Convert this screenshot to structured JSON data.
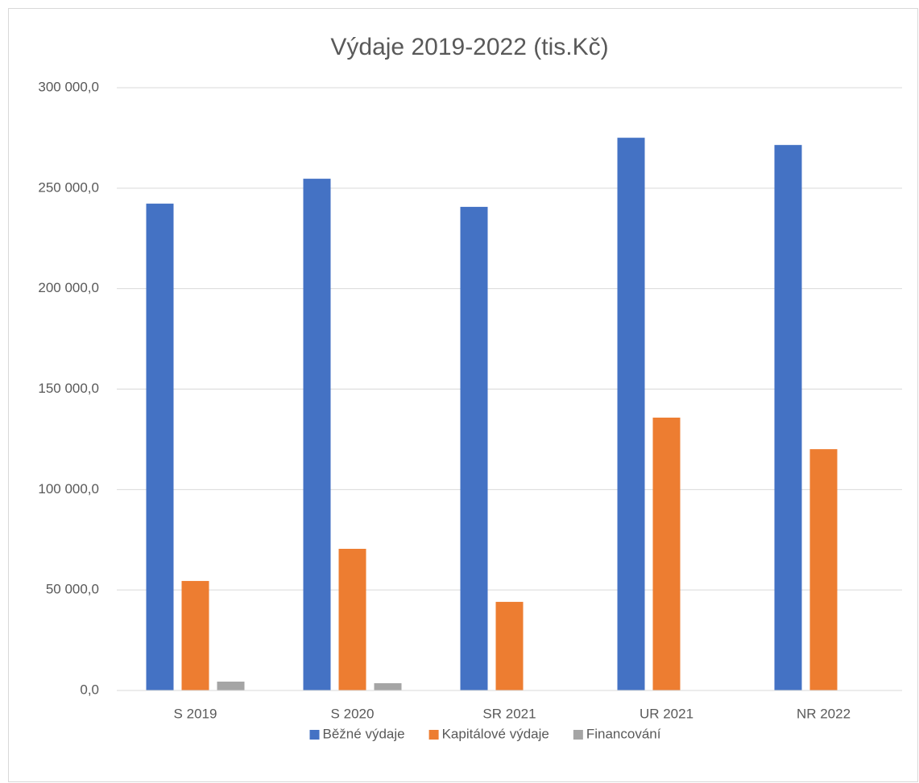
{
  "chart_data": {
    "type": "bar",
    "title": "Výdaje 2019-2022 (tis.Kč)",
    "categories": [
      "S 2019",
      "S 2020",
      "SR 2021",
      "UR 2021",
      "NR 2022"
    ],
    "series": [
      {
        "name": "Běžné výdaje",
        "color": "#4472c4",
        "values": [
          242300,
          254700,
          240700,
          275100,
          271500
        ]
      },
      {
        "name": "Kapitálové výdaje",
        "color": "#ed7d31",
        "values": [
          54500,
          70500,
          44100,
          135800,
          120100
        ]
      },
      {
        "name": "Financování",
        "color": "#a5a5a5",
        "values": [
          4400,
          3600,
          0,
          0,
          0
        ]
      }
    ],
    "ylim": [
      0,
      300000
    ],
    "yticks": [
      {
        "value": 0,
        "label": "0,0"
      },
      {
        "value": 50000,
        "label": "50 000,0"
      },
      {
        "value": 100000,
        "label": "100 000,0"
      },
      {
        "value": 150000,
        "label": "150 000,0"
      },
      {
        "value": 200000,
        "label": "200 000,0"
      },
      {
        "value": 250000,
        "label": "250 000,0"
      },
      {
        "value": 300000,
        "label": "300 000,0"
      }
    ],
    "grid": true,
    "legend": "bottom"
  }
}
